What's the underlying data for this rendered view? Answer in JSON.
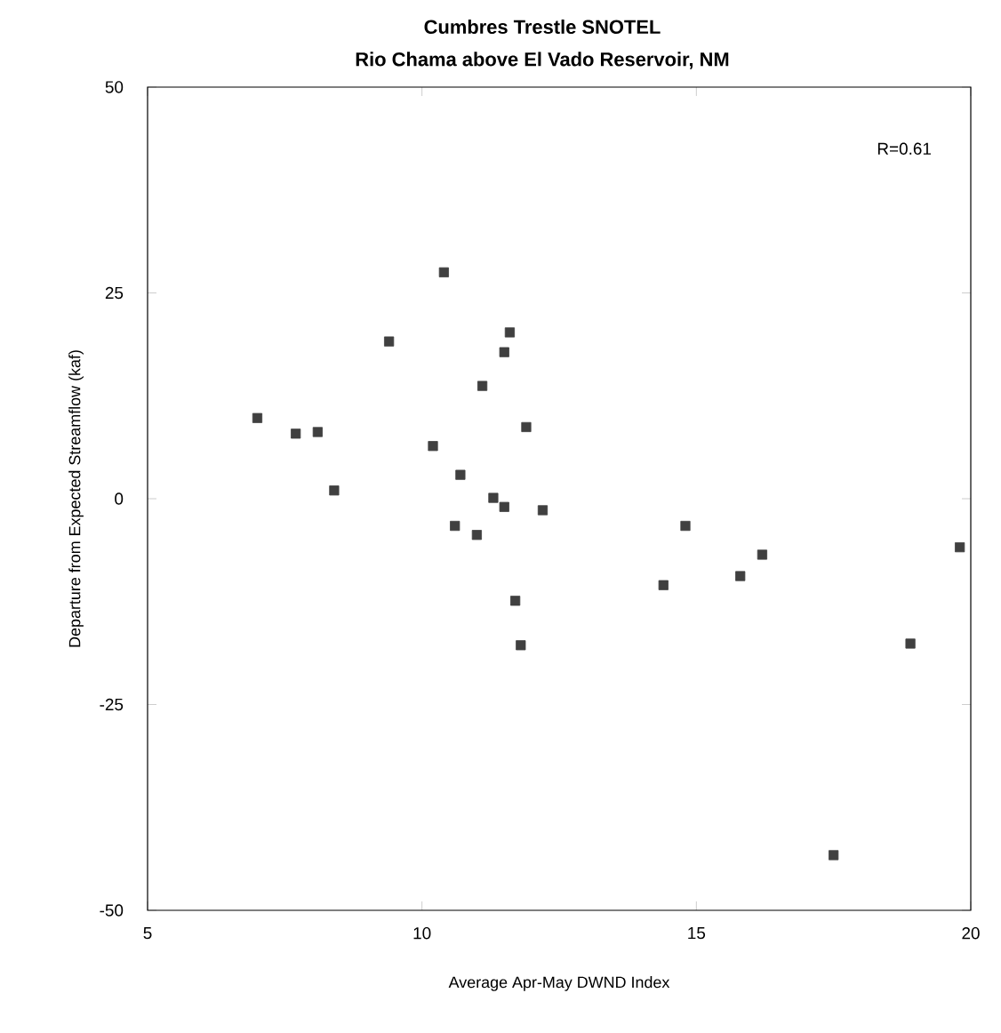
{
  "chart_data": {
    "type": "scatter",
    "title": "Cumbres Trestle SNOTEL",
    "subtitle": "Rio Chama above El Vado Reservoir, NM",
    "xlabel": "Average Apr-May DWND Index",
    "ylabel": "Departure from Expected Streamflow (kaf)",
    "annotations": [
      "R=0.61"
    ],
    "x": [
      7.0,
      7.7,
      8.1,
      8.4,
      9.4,
      10.4,
      10.2,
      10.7,
      10.6,
      11.1,
      11.0,
      11.3,
      11.5,
      11.6,
      11.5,
      11.7,
      11.8,
      11.9,
      12.2,
      14.4,
      14.8,
      15.8,
      16.2,
      17.5,
      18.9,
      19.8
    ],
    "series": [
      {
        "color": "#404040",
        "values": [
          9.8,
          7.9,
          8.1,
          1.0,
          19.1,
          27.5,
          6.4,
          2.9,
          -3.3,
          13.7,
          -4.4,
          0.1,
          17.8,
          20.2,
          -1.0,
          -12.4,
          -17.8,
          8.7,
          -1.4,
          -10.5,
          -3.3,
          -9.4,
          -6.8,
          -43.3,
          -17.6,
          -5.9
        ]
      }
    ],
    "xlim": [
      5,
      20
    ],
    "ylim": [
      -50,
      50
    ],
    "xticks": [
      5,
      10,
      15,
      20
    ],
    "yticks": [
      -50,
      -25,
      0,
      25,
      50
    ],
    "marker": "square",
    "grid": false
  }
}
